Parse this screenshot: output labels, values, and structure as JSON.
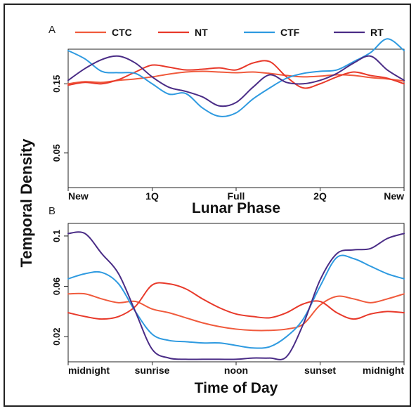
{
  "shared": {
    "ylabel": "Temporal Density"
  },
  "legend": [
    {
      "name": "CTC",
      "color": "#f05a3c"
    },
    {
      "name": "NT",
      "color": "#e8392a"
    },
    {
      "name": "CTF",
      "color": "#2e9ae0"
    },
    {
      "name": "RT",
      "color": "#4a2c86"
    }
  ],
  "chart_data": [
    {
      "panel": "A",
      "type": "line",
      "xlabel": "Lunar Phase",
      "ylabel": "Temporal Density",
      "xlim": [
        0,
        1
      ],
      "ylim": [
        0.0,
        0.2
      ],
      "x_tick_values": [
        0,
        0.25,
        0.5,
        0.75,
        1.0
      ],
      "x_ticks": [
        "New",
        "1Q",
        "Full",
        "2Q",
        "New"
      ],
      "y_tick_values": [
        0.05,
        0.15
      ],
      "y_ticks": [
        "0.05",
        "0.15"
      ],
      "grid": false,
      "legend_position": "top",
      "x": [
        0,
        0.05,
        0.1,
        0.15,
        0.2,
        0.25,
        0.3,
        0.35,
        0.4,
        0.45,
        0.5,
        0.55,
        0.6,
        0.65,
        0.7,
        0.75,
        0.8,
        0.85,
        0.9,
        0.95,
        1.0
      ],
      "series": [
        {
          "name": "CTC",
          "color": "#f05a3c",
          "values": [
            0.15,
            0.153,
            0.152,
            0.155,
            0.157,
            0.16,
            0.164,
            0.167,
            0.168,
            0.167,
            0.166,
            0.167,
            0.165,
            0.162,
            0.16,
            0.161,
            0.163,
            0.162,
            0.159,
            0.157,
            0.154
          ]
        },
        {
          "name": "NT",
          "color": "#e8392a",
          "values": [
            0.148,
            0.152,
            0.15,
            0.156,
            0.167,
            0.177,
            0.174,
            0.17,
            0.171,
            0.173,
            0.17,
            0.18,
            0.182,
            0.16,
            0.144,
            0.15,
            0.16,
            0.167,
            0.162,
            0.158,
            0.15
          ]
        },
        {
          "name": "CTF",
          "color": "#2e9ae0",
          "values": [
            0.198,
            0.186,
            0.168,
            0.166,
            0.165,
            0.15,
            0.135,
            0.136,
            0.115,
            0.103,
            0.108,
            0.128,
            0.144,
            0.158,
            0.165,
            0.168,
            0.17,
            0.182,
            0.195,
            0.215,
            0.198
          ]
        },
        {
          "name": "RT",
          "color": "#4a2c86",
          "values": [
            0.155,
            0.172,
            0.185,
            0.19,
            0.18,
            0.16,
            0.145,
            0.139,
            0.131,
            0.118,
            0.123,
            0.145,
            0.163,
            0.152,
            0.15,
            0.155,
            0.165,
            0.18,
            0.19,
            0.17,
            0.155
          ]
        }
      ]
    },
    {
      "panel": "B",
      "type": "line",
      "xlabel": "Time of Day",
      "ylabel": "Temporal Density",
      "xlim": [
        0,
        1
      ],
      "ylim": [
        0.0,
        0.11
      ],
      "x_tick_values": [
        0,
        0.25,
        0.5,
        0.75,
        1.0
      ],
      "x_ticks": [
        "midnight",
        "sunrise",
        "noon",
        "sunset",
        "midnight"
      ],
      "y_tick_values": [
        0.02,
        0.06,
        0.1
      ],
      "y_ticks": [
        "0.02",
        "0.06",
        "0.1"
      ],
      "grid": false,
      "x": [
        0,
        0.05,
        0.1,
        0.15,
        0.2,
        0.25,
        0.3,
        0.35,
        0.4,
        0.45,
        0.5,
        0.55,
        0.6,
        0.65,
        0.7,
        0.75,
        0.8,
        0.85,
        0.9,
        0.95,
        1.0
      ],
      "series": [
        {
          "name": "CTC",
          "color": "#f05a3c",
          "values": [
            0.054,
            0.054,
            0.05,
            0.047,
            0.048,
            0.042,
            0.039,
            0.035,
            0.031,
            0.028,
            0.026,
            0.025,
            0.025,
            0.026,
            0.03,
            0.045,
            0.052,
            0.05,
            0.047,
            0.05,
            0.054
          ]
        },
        {
          "name": "NT",
          "color": "#e8392a",
          "values": [
            0.039,
            0.036,
            0.034,
            0.036,
            0.044,
            0.061,
            0.062,
            0.058,
            0.05,
            0.043,
            0.038,
            0.036,
            0.035,
            0.039,
            0.046,
            0.048,
            0.039,
            0.034,
            0.038,
            0.04,
            0.039
          ]
        },
        {
          "name": "CTF",
          "color": "#2e9ae0",
          "values": [
            0.066,
            0.07,
            0.071,
            0.062,
            0.04,
            0.022,
            0.017,
            0.016,
            0.015,
            0.015,
            0.013,
            0.011,
            0.012,
            0.02,
            0.034,
            0.06,
            0.083,
            0.082,
            0.076,
            0.07,
            0.066
          ]
        },
        {
          "name": "RT",
          "color": "#4a2c86",
          "values": [
            0.102,
            0.102,
            0.086,
            0.07,
            0.04,
            0.01,
            0.003,
            0.002,
            0.002,
            0.002,
            0.002,
            0.003,
            0.003,
            0.004,
            0.03,
            0.065,
            0.086,
            0.089,
            0.09,
            0.098,
            0.102
          ]
        }
      ]
    }
  ]
}
